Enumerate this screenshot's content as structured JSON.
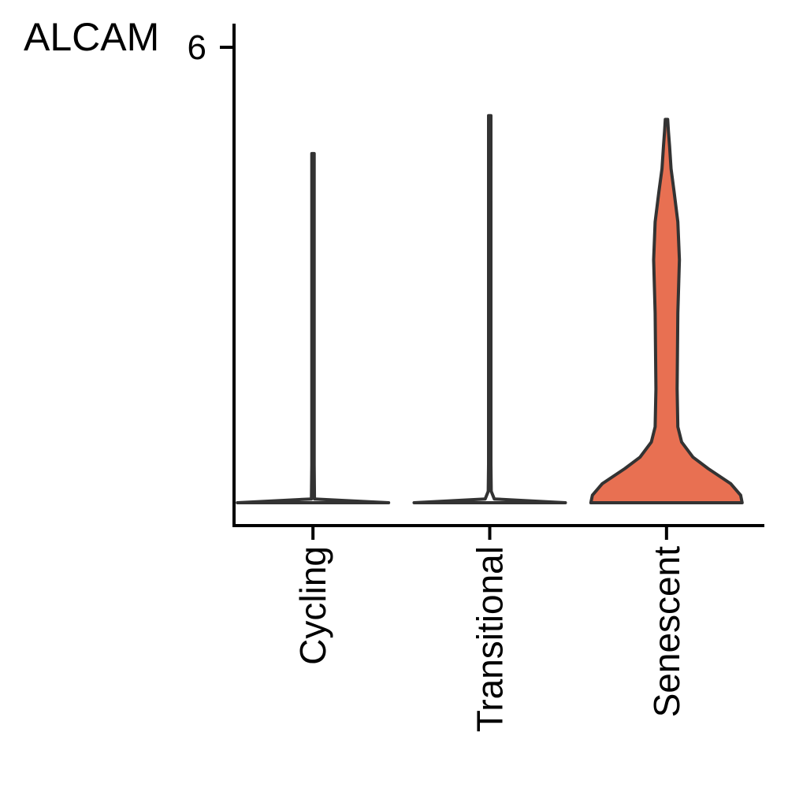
{
  "chart_data": {
    "type": "violin",
    "title": "ALCAM",
    "xlabel": "",
    "ylabel": "",
    "ylim": [
      0,
      6.2
    ],
    "y_ticks": [
      6
    ],
    "y_tick_labels": [
      "6"
    ],
    "categories": [
      "Cycling",
      "Transitional",
      "Senescent"
    ],
    "series": [
      {
        "category": "Cycling",
        "max": 4.6,
        "fill": "#ffffff",
        "density": [
          [
            0,
            1.0
          ],
          [
            0.05,
            0.02
          ],
          [
            0.5,
            0.01
          ],
          [
            4.6,
            0.01
          ]
        ]
      },
      {
        "category": "Transitional",
        "max": 5.1,
        "fill": "#ffffff",
        "density": [
          [
            0,
            1.0
          ],
          [
            0.05,
            0.06
          ],
          [
            0.15,
            0.02
          ],
          [
            0.5,
            0.01
          ],
          [
            5.1,
            0.01
          ]
        ]
      },
      {
        "category": "Senescent",
        "max": 5.05,
        "fill": "#e87052",
        "density": [
          [
            0,
            1.0
          ],
          [
            0.1,
            0.98
          ],
          [
            0.25,
            0.85
          ],
          [
            0.45,
            0.55
          ],
          [
            0.6,
            0.35
          ],
          [
            0.8,
            0.2
          ],
          [
            1.0,
            0.15
          ],
          [
            1.5,
            0.14
          ],
          [
            2.5,
            0.15
          ],
          [
            3.2,
            0.17
          ],
          [
            3.7,
            0.15
          ],
          [
            4.1,
            0.1
          ],
          [
            4.4,
            0.06
          ],
          [
            4.7,
            0.04
          ],
          [
            4.9,
            0.025
          ],
          [
            5.05,
            0.01
          ]
        ]
      }
    ],
    "colors": {
      "axis": "#000000",
      "outline": "#333333"
    },
    "grid": false,
    "legend": "none"
  }
}
